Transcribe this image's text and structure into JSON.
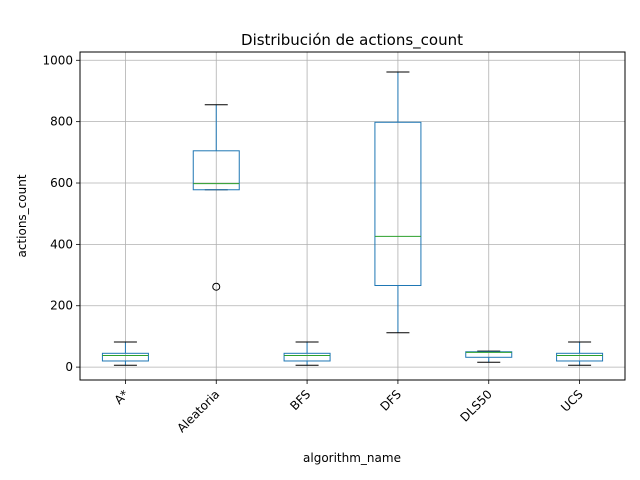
{
  "chart_data": {
    "type": "box",
    "title": "Distribución de actions_count",
    "xlabel": "algorithm_name",
    "ylabel": "actions_count",
    "ylim": [
      -42,
      1027
    ],
    "yticks": [
      0,
      200,
      400,
      600,
      800,
      1000
    ],
    "grid": true,
    "categories": [
      "A*",
      "Aleatoria",
      "BFS",
      "DFS",
      "DLS50",
      "UCS"
    ],
    "boxes": [
      {
        "whisker_low": 6,
        "q1": 20,
        "median": 38,
        "q3": 45,
        "whisker_high": 82,
        "outliers": []
      },
      {
        "whisker_low": 578,
        "q1": 578,
        "median": 598,
        "q3": 705,
        "whisker_high": 855,
        "outliers": [
          262
        ]
      },
      {
        "whisker_low": 6,
        "q1": 20,
        "median": 38,
        "q3": 45,
        "whisker_high": 82,
        "outliers": []
      },
      {
        "whisker_low": 112,
        "q1": 266,
        "median": 426,
        "q3": 798,
        "whisker_high": 962,
        "outliers": []
      },
      {
        "whisker_low": 16,
        "q1": 32,
        "median": 48,
        "q3": 50,
        "whisker_high": 52,
        "outliers": []
      },
      {
        "whisker_low": 6,
        "q1": 20,
        "median": 38,
        "q3": 45,
        "whisker_high": 82,
        "outliers": []
      }
    ],
    "colors": {
      "box": "#1f77b4",
      "median": "#2ca02c",
      "whisker": "#000000",
      "grid": "#b0b0b0"
    }
  }
}
